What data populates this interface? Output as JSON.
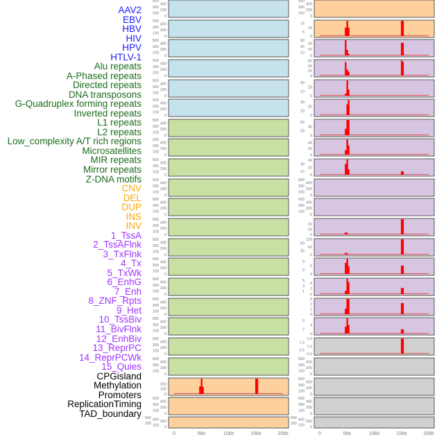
{
  "colors": {
    "viral": "#1a1aff",
    "repeat": "#1a6b1a",
    "sv": "#ffa500",
    "chromhmm": "#a033ff",
    "other": "#000000",
    "bar": "#ff0000",
    "panel_blue": "#c6e2ec",
    "panel_green": "#c8e0a4",
    "panel_orange": "#fdd09e",
    "panel_purple": "#d6c6e2",
    "panel_gray": "#d0d0d0"
  },
  "labels": [
    {
      "t": "AAV2",
      "c": "viral"
    },
    {
      "t": "EBV",
      "c": "viral"
    },
    {
      "t": "HBV",
      "c": "viral"
    },
    {
      "t": "HIV",
      "c": "viral"
    },
    {
      "t": "HPV",
      "c": "viral"
    },
    {
      "t": "HTLV-1",
      "c": "viral"
    },
    {
      "t": "Alu repeats",
      "c": "repeat"
    },
    {
      "t": "A-Phased repeats",
      "c": "repeat"
    },
    {
      "t": "Directed repeats",
      "c": "repeat"
    },
    {
      "t": "DNA transposons",
      "c": "repeat"
    },
    {
      "t": "G-Quadruplex forming repeats",
      "c": "repeat"
    },
    {
      "t": "Inverted repeats",
      "c": "repeat"
    },
    {
      "t": "L1 repeats",
      "c": "repeat"
    },
    {
      "t": "L2 repeats",
      "c": "repeat"
    },
    {
      "t": "Low_complexity A/T rich regions",
      "c": "repeat"
    },
    {
      "t": "Microsatellites",
      "c": "repeat"
    },
    {
      "t": "MIR repeats",
      "c": "repeat"
    },
    {
      "t": "Mirror repeats",
      "c": "repeat"
    },
    {
      "t": "Z-DNA motifs",
      "c": "repeat"
    },
    {
      "t": "CNV",
      "c": "sv"
    },
    {
      "t": "DEL",
      "c": "sv"
    },
    {
      "t": "DUP",
      "c": "sv"
    },
    {
      "t": "INS",
      "c": "sv"
    },
    {
      "t": "INV",
      "c": "sv"
    },
    {
      "t": "1_TssA",
      "c": "chromhmm"
    },
    {
      "t": "2_TssAFlnk",
      "c": "chromhmm"
    },
    {
      "t": "3_TxFlnk",
      "c": "chromhmm"
    },
    {
      "t": "4_Tx",
      "c": "chromhmm"
    },
    {
      "t": "5_TxWk",
      "c": "chromhmm"
    },
    {
      "t": "6_EnhG",
      "c": "chromhmm"
    },
    {
      "t": "7_Enh",
      "c": "chromhmm"
    },
    {
      "t": "8_ZNF_Rpts",
      "c": "chromhmm"
    },
    {
      "t": "9_Het",
      "c": "chromhmm"
    },
    {
      "t": "10_TssBiv",
      "c": "chromhmm"
    },
    {
      "t": "11_BivFlnk",
      "c": "chromhmm"
    },
    {
      "t": "12_EnhBiv",
      "c": "chromhmm"
    },
    {
      "t": "13_ReprPC",
      "c": "chromhmm"
    },
    {
      "t": "14_ReprPCWk",
      "c": "chromhmm"
    },
    {
      "t": "15_Quies",
      "c": "chromhmm"
    },
    {
      "t": "CPGisland",
      "c": "other"
    },
    {
      "t": "Methylation",
      "c": "other"
    },
    {
      "t": "Promoters",
      "c": "other"
    },
    {
      "t": "ReplicationTiming",
      "c": "other"
    },
    {
      "t": "TAD_boundary",
      "c": "other"
    }
  ],
  "chart_data": {
    "type": "bar",
    "xlabel": "",
    "xlim": [
      0,
      20
    ],
    "xticks": [
      "0",
      "5kb",
      "10kb",
      "15kb",
      "20kb"
    ],
    "xtick_values": [
      0,
      5,
      10,
      15,
      20
    ],
    "bin_starts_5kb": [
      4.6,
      4.9,
      5.15
    ],
    "bin_starts_15kb": [
      14.9,
      15.15
    ],
    "columns": [
      {
        "name": "left",
        "panels": [
          {
            "bg": "panel_blue",
            "ymax": 500,
            "ticks": [
              "0",
              "100",
              "200",
              "300",
              "400",
              "500"
            ]
          },
          {
            "bg": "panel_blue",
            "ymax": 500,
            "ticks": [
              "0",
              "100",
              "200",
              "300",
              "400",
              "500"
            ]
          },
          {
            "bg": "panel_blue",
            "ymax": 500,
            "ticks": [
              "0",
              "100",
              "200",
              "300",
              "400",
              "500"
            ]
          },
          {
            "bg": "panel_blue",
            "ymax": 500,
            "ticks": [
              "0",
              "100",
              "200",
              "300",
              "400",
              "500"
            ]
          },
          {
            "bg": "panel_blue",
            "ymax": 500,
            "ticks": [
              "0",
              "100",
              "200",
              "300",
              "400",
              "500"
            ]
          },
          {
            "bg": "panel_blue",
            "ymax": 500,
            "ticks": [
              "0",
              "100",
              "200",
              "300",
              "400",
              "500"
            ]
          },
          {
            "bg": "panel_green",
            "ymax": 500,
            "ticks": [
              "0",
              "100",
              "200",
              "300",
              "400",
              "500"
            ]
          },
          {
            "bg": "panel_green",
            "ymax": 500,
            "ticks": [
              "0",
              "100",
              "200",
              "300",
              "400",
              "500"
            ]
          },
          {
            "bg": "panel_green",
            "ymax": 500,
            "ticks": [
              "0",
              "100",
              "200",
              "300",
              "400",
              "500"
            ]
          },
          {
            "bg": "panel_green",
            "ymax": 500,
            "ticks": [
              "0",
              "100",
              "200",
              "300",
              "400",
              "500"
            ]
          },
          {
            "bg": "panel_green",
            "ymax": 500,
            "ticks": [
              "0",
              "100",
              "200",
              "300",
              "400",
              "500"
            ]
          },
          {
            "bg": "panel_green",
            "ymax": 500,
            "ticks": [
              "0",
              "100",
              "200",
              "300",
              "400",
              "500"
            ]
          },
          {
            "bg": "panel_green",
            "ymax": 500,
            "ticks": [
              "0",
              "100",
              "200",
              "300",
              "400",
              "500"
            ]
          },
          {
            "bg": "panel_green",
            "ymax": 500,
            "ticks": [
              "0",
              "100",
              "200",
              "300",
              "400",
              "500"
            ]
          },
          {
            "bg": "panel_green",
            "ymax": 500,
            "ticks": [
              "0",
              "100",
              "200",
              "300",
              "400",
              "500"
            ]
          },
          {
            "bg": "panel_green",
            "ymax": 500,
            "ticks": [
              "0",
              "100",
              "200",
              "300",
              "400",
              "500"
            ]
          },
          {
            "bg": "panel_green",
            "ymax": 500,
            "ticks": [
              "0",
              "100",
              "200",
              "300",
              "400",
              "500"
            ]
          },
          {
            "bg": "panel_green",
            "ymax": 500,
            "ticks": [
              "0",
              "100",
              "200",
              "300",
              "400",
              "500"
            ]
          },
          {
            "bg": "panel_green",
            "ymax": 500,
            "ticks": [
              "0",
              "100",
              "200",
              "300",
              "400",
              "500"
            ]
          },
          {
            "bg": "panel_orange",
            "ymax": 300,
            "ticks": [
              "0",
              "100",
              "200"
            ],
            "b5": [
              150,
              300,
              140
            ],
            "b15": [
              300,
              300
            ]
          },
          {
            "bg": "panel_orange",
            "ymax": 500,
            "ticks": [
              "0",
              "100",
              "200",
              "300",
              "400",
              "500"
            ]
          },
          {
            "bg": "panel_orange",
            "ymax": 500,
            "ticks": [
              "0",
              "100",
              "200",
              "300",
              "400",
              "500"
            ]
          }
        ]
      },
      {
        "name": "right",
        "panels": [
          {
            "bg": "panel_orange",
            "ymax": 500,
            "ticks": [
              "0",
              "100",
              "200",
              "300",
              "400",
              "500"
            ]
          },
          {
            "bg": "panel_orange",
            "ymax": 18,
            "ticks": [
              "0",
              "5",
              "10",
              "15"
            ],
            "b5": [
              10,
              18,
              10
            ],
            "b15": [
              18,
              18
            ]
          },
          {
            "bg": "panel_purple",
            "ymax": 50,
            "ticks": [
              "0",
              "10",
              "20",
              "30",
              "40",
              "50"
            ],
            "b5": [
              50,
              18,
              5
            ],
            "b15": [
              42,
              41
            ]
          },
          {
            "bg": "panel_purple",
            "ymax": 62,
            "ticks": [
              "0",
              "20",
              "40",
              "60"
            ],
            "b5": [
              55,
              25,
              16
            ],
            "b15": [
              62,
              56
            ]
          },
          {
            "bg": "panel_purple",
            "ymax": 35,
            "ticks": [
              "0",
              "10",
              "20",
              "30"
            ],
            "b5": [
              5,
              35,
              14
            ]
          },
          {
            "bg": "panel_purple",
            "ymax": 35,
            "ticks": [
              "0",
              "10",
              "20",
              "30"
            ],
            "b5": [
              0,
              25,
              35
            ]
          },
          {
            "bg": "panel_purple",
            "ymax": 70,
            "ticks": [
              "0",
              "20",
              "40",
              "60"
            ],
            "b5": [
              30,
              70,
              70
            ]
          },
          {
            "bg": "panel_purple",
            "ymax": 50,
            "ticks": [
              "0",
              "20",
              "40"
            ],
            "b5": [
              15,
              50,
              30
            ]
          },
          {
            "bg": "panel_purple",
            "ymax": 42,
            "ticks": [
              "0",
              "10",
              "20",
              "30",
              "40"
            ],
            "b5": [
              30,
              42,
              15
            ],
            "b15": [
              10,
              9
            ]
          },
          {
            "bg": "panel_purple",
            "ymax": 500,
            "ticks": [
              "0",
              "100",
              "200",
              "300",
              "400",
              "500"
            ]
          },
          {
            "bg": "panel_purple",
            "ymax": 500,
            "ticks": [
              "0",
              "100",
              "200",
              "300",
              "400",
              "500"
            ]
          },
          {
            "bg": "panel_purple",
            "ymax": 29,
            "ticks": [
              "0",
              "10",
              "20"
            ],
            "b5": [
              4,
              3,
              0
            ],
            "b15": [
              29,
              29
            ]
          },
          {
            "bg": "panel_purple",
            "ymax": 120,
            "ticks": [
              "0",
              "30",
              "60",
              "90",
              "120"
            ],
            "b5": [
              14,
              10,
              0
            ],
            "b15": [
              120,
              120
            ]
          },
          {
            "bg": "panel_purple",
            "ymax": 11,
            "ticks": [
              "0",
              "3",
              "6",
              "9"
            ],
            "b5": [
              8,
              11,
              5.5
            ],
            "b15": [
              6,
              6
            ]
          },
          {
            "bg": "panel_purple",
            "ymax": 5.5,
            "ticks": [
              "0",
              "1",
              "2",
              "3",
              "4",
              "5"
            ],
            "b5": [
              1.2,
              5.5,
              4.3
            ],
            "b15": [
              2.2,
              2.2
            ]
          },
          {
            "bg": "panel_purple",
            "ymax": 3,
            "ticks": [
              "0",
              "1",
              "2",
              "3"
            ],
            "b5": [
              1.1,
              3,
              3
            ],
            "b15": [
              2.2,
              2.2
            ]
          },
          {
            "bg": "panel_purple",
            "ymax": 7,
            "ticks": [
              "0",
              "2",
              "4",
              "6"
            ],
            "b5": [
              3.2,
              7,
              4
            ],
            "b15": [
              2,
              2
            ]
          },
          {
            "bg": "panel_gray",
            "ymax": 2,
            "ticks": [
              "0.0",
              "0.5",
              "1.0",
              "1.5",
              "2.0"
            ],
            "b15": [
              2,
              2
            ]
          },
          {
            "bg": "panel_gray",
            "ymax": 500,
            "ticks": [
              "0",
              "100",
              "200",
              "300",
              "400",
              "500"
            ]
          },
          {
            "bg": "panel_gray",
            "ymax": 500,
            "ticks": [
              "0",
              "100",
              "200",
              "300",
              "400",
              "500"
            ]
          },
          {
            "bg": "panel_gray",
            "ymax": 500,
            "ticks": [
              "0",
              "100",
              "200",
              "300",
              "400",
              "500"
            ]
          },
          {
            "bg": "panel_gray",
            "ymax": 500,
            "ticks": [
              "0",
              "100",
              "200",
              "300",
              "400",
              "500"
            ]
          }
        ]
      }
    ]
  }
}
